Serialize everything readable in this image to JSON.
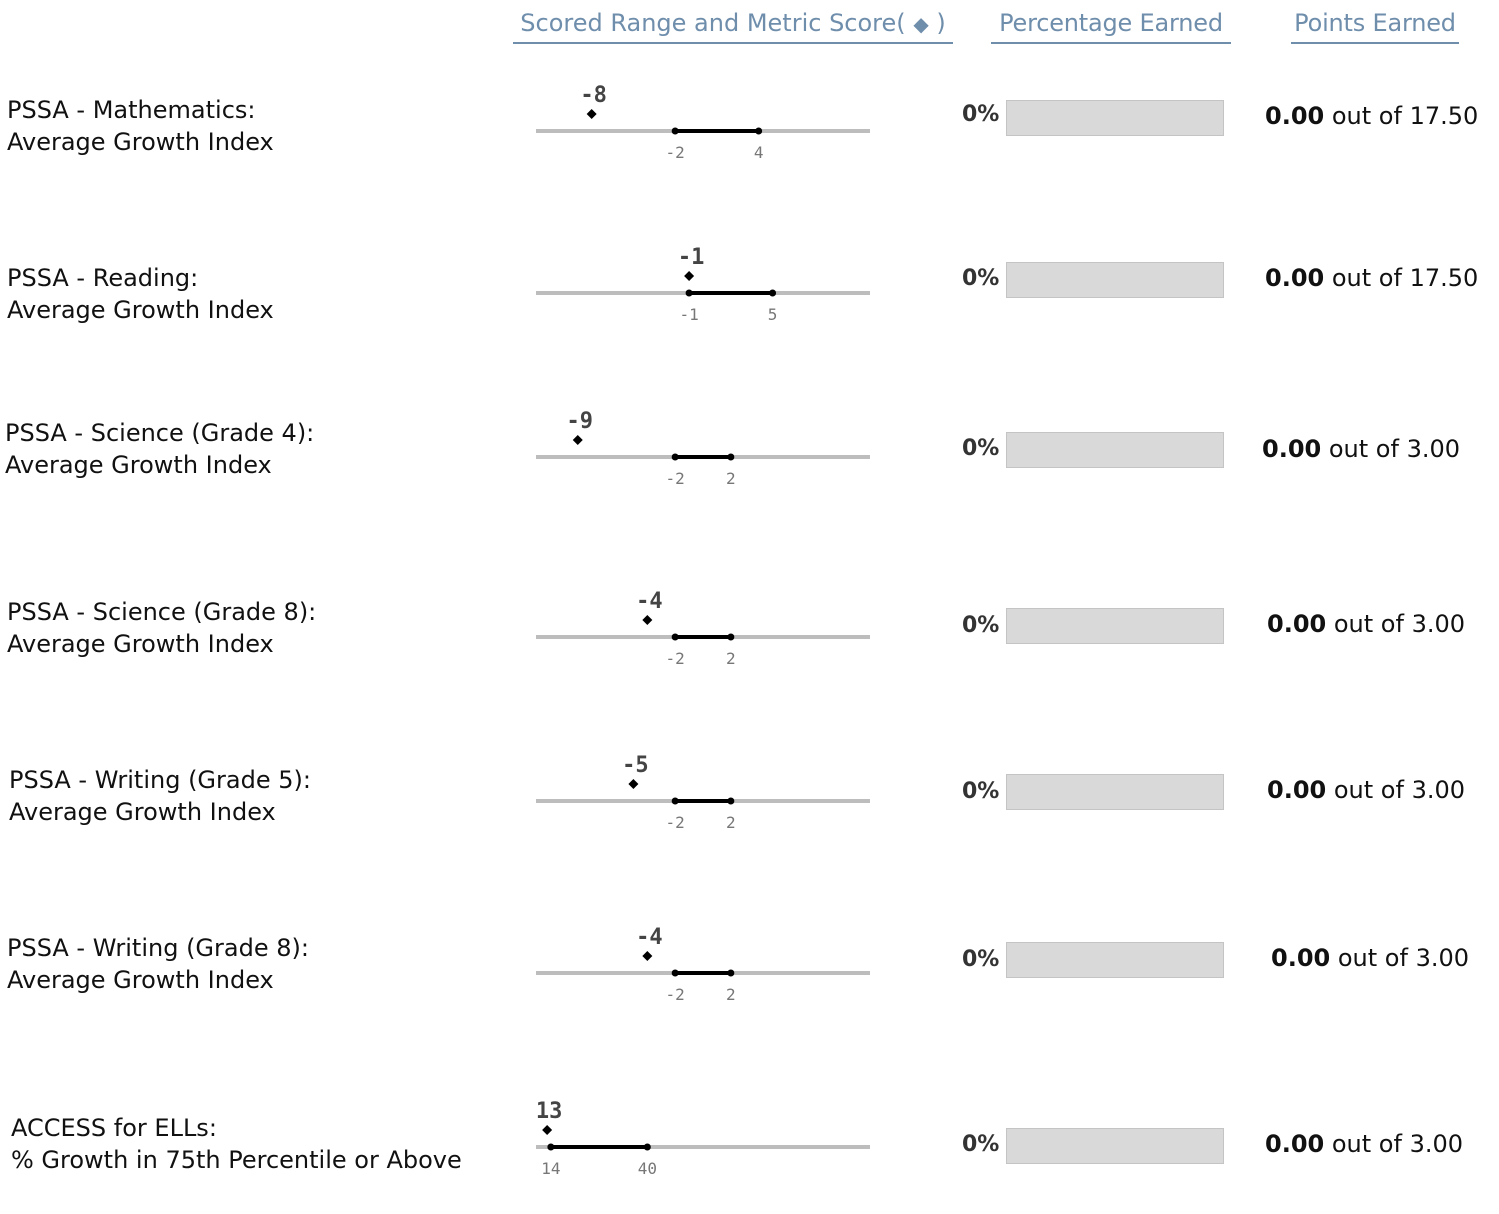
{
  "headers": {
    "scored_range": "Scored Range and Metric Score",
    "scored_range_paren_open": "(",
    "scored_range_paren_close": ")",
    "percentage": "Percentage Earned",
    "points": "Points Earned"
  },
  "rows": [
    {
      "label_line1": "PSSA - Mathematics:",
      "label_line2": "Average Growth Index",
      "score": -8,
      "score_label": "-8",
      "range_low": -2,
      "range_high": 4,
      "range_low_label": "-2",
      "range_high_label": "4",
      "scale_min": -12,
      "scale_max": 12,
      "percent_label": "0%",
      "percent_value": 0,
      "points_earned": "0.00",
      "out_of_text": "out of",
      "points_possible": "17.50"
    },
    {
      "label_line1": "PSSA - Reading:",
      "label_line2": "Average Growth Index",
      "score": -1,
      "score_label": "-1",
      "range_low": -1,
      "range_high": 5,
      "range_low_label": "-1",
      "range_high_label": "5",
      "scale_min": -12,
      "scale_max": 12,
      "percent_label": "0%",
      "percent_value": 0,
      "points_earned": "0.00",
      "out_of_text": "out of",
      "points_possible": "17.50"
    },
    {
      "label_line1": "PSSA - Science (Grade 4):",
      "label_line2": "Average Growth Index",
      "score": -9,
      "score_label": "-9",
      "range_low": -2,
      "range_high": 2,
      "range_low_label": "-2",
      "range_high_label": "2",
      "scale_min": -12,
      "scale_max": 12,
      "percent_label": "0%",
      "percent_value": 0,
      "points_earned": "0.00",
      "out_of_text": "out of",
      "points_possible": "3.00"
    },
    {
      "label_line1": "PSSA - Science (Grade 8):",
      "label_line2": "Average Growth Index",
      "score": -4,
      "score_label": "-4",
      "range_low": -2,
      "range_high": 2,
      "range_low_label": "-2",
      "range_high_label": "2",
      "scale_min": -12,
      "scale_max": 12,
      "percent_label": "0%",
      "percent_value": 0,
      "points_earned": "0.00",
      "out_of_text": "out of",
      "points_possible": "3.00"
    },
    {
      "label_line1": "PSSA - Writing (Grade 5):",
      "label_line2": "Average Growth Index",
      "score": -5,
      "score_label": "-5",
      "range_low": -2,
      "range_high": 2,
      "range_low_label": "-2",
      "range_high_label": "2",
      "scale_min": -12,
      "scale_max": 12,
      "percent_label": "0%",
      "percent_value": 0,
      "points_earned": "0.00",
      "out_of_text": "out of",
      "points_possible": "3.00"
    },
    {
      "label_line1": "PSSA - Writing (Grade 8):",
      "label_line2": "Average Growth Index",
      "score": -4,
      "score_label": "-4",
      "range_low": -2,
      "range_high": 2,
      "range_low_label": "-2",
      "range_high_label": "2",
      "scale_min": -12,
      "scale_max": 12,
      "percent_label": "0%",
      "percent_value": 0,
      "points_earned": "0.00",
      "out_of_text": "out of",
      "points_possible": "3.00"
    },
    {
      "label_line1": "ACCESS for ELLs:",
      "label_line2": "% Growth in 75th Percentile or Above",
      "score": 13,
      "score_label": "13",
      "range_low": 14,
      "range_high": 40,
      "range_low_label": "14",
      "range_high_label": "40",
      "scale_min": 10,
      "scale_max": 100,
      "percent_label": "0%",
      "percent_value": 0,
      "points_earned": "0.00",
      "out_of_text": "out of",
      "points_possible": "3.00"
    }
  ]
}
